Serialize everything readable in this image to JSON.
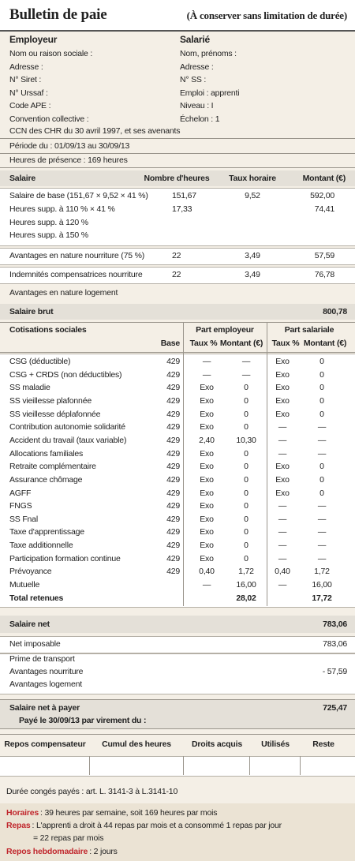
{
  "header": {
    "title": "Bulletin de paie",
    "subtitle": "(À conserver sans limitation de durée)"
  },
  "employer": {
    "heading": "Employeur",
    "lines": [
      "Nom ou raison sociale :",
      "Adresse :",
      "N° Siret :",
      "N° Urssaf :",
      "Code APE :",
      "Convention collective :"
    ]
  },
  "employee": {
    "heading": "Salarié",
    "lines": [
      "Nom, prénoms :",
      "Adresse :",
      "N° SS :",
      "Emploi : apprenti",
      "Niveau : I",
      "Échelon : 1"
    ]
  },
  "convention": "CCN des CHR du 30 avril 1997,  et ses avenants",
  "period": "Période du : 01/09/13 au 30/09/13",
  "hours": "Heures de présence : 169 heures",
  "salary": {
    "columns": [
      "Salaire",
      "Nombre d'heures",
      "Taux horaire",
      "Montant (€)"
    ],
    "rows": [
      [
        "Salaire de base (151,67 × 9,52 × 41 %)",
        "151,67",
        "9,52",
        "592,00"
      ],
      [
        "Heures supp. à 110 % × 41 %",
        "17,33",
        null,
        "74,41"
      ],
      [
        "Heures supp. à 120 %",
        null,
        null,
        null
      ],
      [
        "Heures supp. à 150 %",
        null,
        null,
        null
      ],
      [
        "Avantages en nature nourriture (75 %)",
        "22",
        "3,49",
        "57,59"
      ],
      [
        "Indemnités compensatrices nourriture",
        "22",
        "3,49",
        "76,78"
      ],
      [
        "Avantages en nature logement",
        null,
        null,
        null
      ]
    ],
    "gross": {
      "label": "Salaire brut",
      "amount": "800,78"
    }
  },
  "contributions": {
    "title": "Cotisations sociales",
    "employer_part": "Part employeur",
    "employee_part": "Part salariale",
    "columns": [
      "Base",
      "Taux %",
      "Montant (€)",
      "Taux %",
      "Montant (€)"
    ],
    "rows": [
      [
        "CSG (déductible)",
        "429",
        "—",
        "—",
        "Exo",
        "0"
      ],
      [
        "CSG + CRDS (non déductibles)",
        "429",
        "—",
        "—",
        "Exo",
        "0"
      ],
      [
        "SS maladie",
        "429",
        "Exo",
        "0",
        "Exo",
        "0"
      ],
      [
        "SS vieillesse plafonnée",
        "429",
        "Exo",
        "0",
        "Exo",
        "0"
      ],
      [
        "SS vieillesse déplafonnée",
        "429",
        "Exo",
        "0",
        "Exo",
        "0"
      ],
      [
        "Contribution autonomie solidarité",
        "429",
        "Exo",
        "0",
        "—",
        "—"
      ],
      [
        "Accident du travail (taux variable)",
        "429",
        "2,40",
        "10,30",
        "—",
        "—"
      ],
      [
        "Allocations familiales",
        "429",
        "Exo",
        "0",
        "—",
        "—"
      ],
      [
        "Retraite complémentaire",
        "429",
        "Exo",
        "0",
        "Exo",
        "0"
      ],
      [
        "Assurance chômage",
        "429",
        "Exo",
        "0",
        "Exo",
        "0"
      ],
      [
        "AGFF",
        "429",
        "Exo",
        "0",
        "Exo",
        "0"
      ],
      [
        "FNGS",
        "429",
        "Exo",
        "0",
        "—",
        "—"
      ],
      [
        "SS Fnal",
        "429",
        "Exo",
        "0",
        "—",
        "—"
      ],
      [
        "Taxe d'apprentissage",
        "429",
        "Exo",
        "0",
        "—",
        "—"
      ],
      [
        "Taxe additionnelle",
        "429",
        "Exo",
        "0",
        "—",
        "—"
      ],
      [
        "Participation formation continue",
        "429",
        "Exo",
        "0",
        "—",
        "—"
      ],
      [
        "Prévoyance",
        "429",
        "0,40",
        "1,72",
        "0,40",
        "1,72"
      ],
      [
        "Mutuelle",
        null,
        "—",
        "16,00",
        "—",
        "16,00"
      ]
    ],
    "total": {
      "label": "Total retenues",
      "employer": "28,02",
      "employee": "17,72"
    }
  },
  "net": {
    "label": "Salaire net",
    "amount": "783,06"
  },
  "taxable": {
    "label": "Net imposable",
    "amount": "783,06"
  },
  "adjustments": [
    [
      "Prime de transport",
      null
    ],
    [
      "Avantages nourriture",
      "- 57,59"
    ],
    [
      "Avantages logement",
      null
    ]
  ],
  "pay": {
    "label": "Salaire net à payer",
    "amount": "725,47",
    "date": "Payé le 30/09/13 par virement du :"
  },
  "rest": {
    "columns": [
      "Repos compensateur",
      "Cumul des heures",
      "Droits acquis",
      "Utilisés",
      "Reste"
    ]
  },
  "leave": "Durée congés payés : art. L. 3141-3  à  L.3141-10",
  "notes": [
    {
      "label": "Horaires",
      "text": ": 39 heures par semaine, soit 169 heures par mois"
    },
    {
      "label": "Repas",
      "text": ": L'apprenti a droit à 44 repas par mois et a consommé 1 repas par jour",
      "continuation": "= 22 repas par mois"
    },
    {
      "label": "Repos hebdomadaire",
      "text": ": 2 jours"
    }
  ]
}
